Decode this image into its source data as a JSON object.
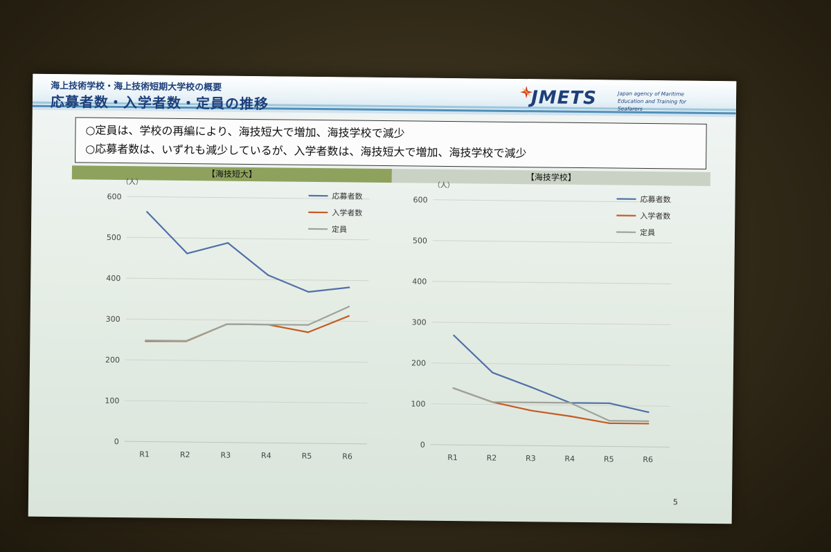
{
  "header": {
    "subtitle": "海上技術学校・海上技術短期大学校の概要",
    "title": "応募者数・入学者数・定員の推移",
    "logo_text": "JMETS",
    "logo_tagline": "Japan agency of Maritime Education and Training for Seafarers"
  },
  "summary": {
    "line1": "○定員は、学校の再編により、海技短大で増加、海技学校で減少",
    "line2": "○応募者数は、いずれも減少しているが、入学者数は、海技短大で増加、海技学校で減少"
  },
  "page_number": "5",
  "colors": {
    "applicants": "#4f6fa8",
    "enrolled": "#c65a22",
    "capacity": "#9da39a",
    "head_left": "#8ea25d",
    "head_right": "#c9d2c4"
  },
  "chart_data": [
    {
      "type": "line",
      "title": "【海技短大】",
      "unit": "（人）",
      "categories": [
        "R1",
        "R2",
        "R3",
        "R4",
        "R5",
        "R6"
      ],
      "ylim": [
        0,
        600
      ],
      "yticks": [
        0,
        100,
        200,
        300,
        400,
        500,
        600
      ],
      "grid": true,
      "legend_position": "top-right",
      "series": [
        {
          "name": "応募者数",
          "values": [
            563,
            462,
            489,
            411,
            371,
            383
          ]
        },
        {
          "name": "入学者数",
          "values": [
            246,
            247,
            290,
            290,
            272,
            313
          ]
        },
        {
          "name": "定員",
          "values": [
            248,
            248,
            290,
            290,
            290,
            336
          ]
        }
      ]
    },
    {
      "type": "line",
      "title": "【海技学校】",
      "unit": "（人）",
      "categories": [
        "R1",
        "R2",
        "R3",
        "R4",
        "R5",
        "R6"
      ],
      "ylim": [
        0,
        600
      ],
      "yticks": [
        0,
        100,
        200,
        300,
        400,
        500,
        600
      ],
      "grid": true,
      "legend_position": "top-right",
      "series": [
        {
          "name": "応募者数",
          "values": [
            268,
            178,
            143,
            106,
            106,
            85
          ]
        },
        {
          "name": "入学者数",
          "values": [
            139,
            106,
            86,
            73,
            57,
            57
          ]
        },
        {
          "name": "定員",
          "values": [
            139,
            106,
            106,
            106,
            63,
            63
          ]
        }
      ]
    }
  ]
}
